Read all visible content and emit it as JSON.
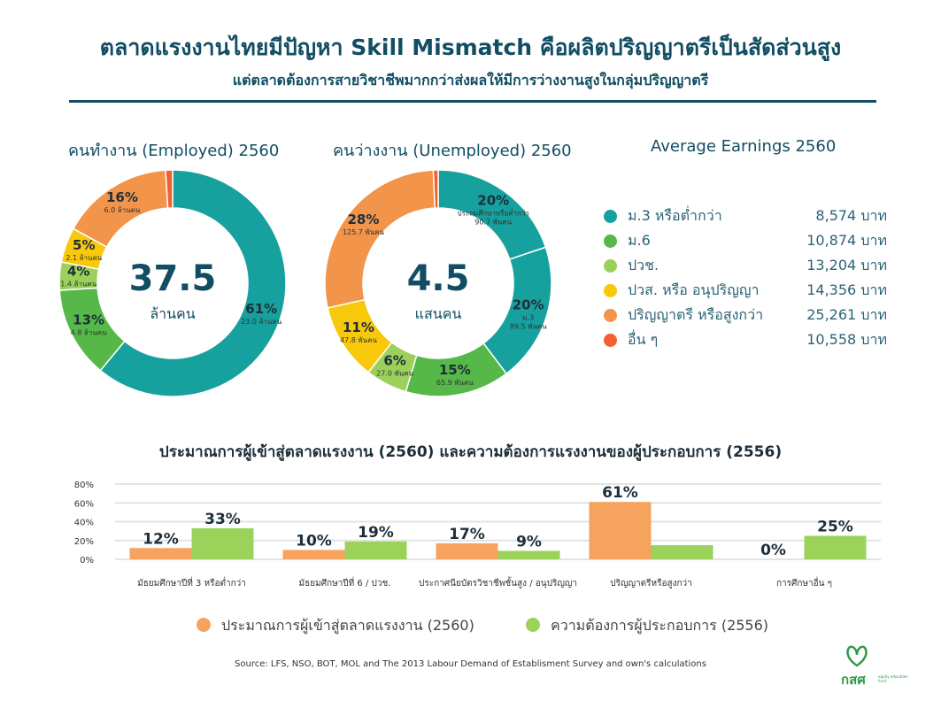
{
  "header": {
    "title": "ตลาดแรงงานไทยมีปัญหา Skill Mismatch คือผลิตปริญญาตรีเป็นสัดส่วนสูง",
    "subtitle": "แต่ตลาดต้องการสายวิชาชีพมากกว่าส่งผลให้มีการว่างงานสูงในกลุ่มปริญญาตรี"
  },
  "colors": {
    "teal": "#16a09e",
    "green": "#55b849",
    "lightgreen": "#9bd05a",
    "yellow": "#f7c90a",
    "orange": "#f2944a",
    "red": "#f2602f",
    "bar_orange": "#f5a35e",
    "bar_green": "#9bd35a"
  },
  "chart_data": [
    {
      "type": "donut",
      "title": "คนทำงาน (Employed) 2560",
      "center_value": "37.5",
      "center_unit": "ล้านคน",
      "slices": [
        {
          "pct": 61,
          "label": "61%",
          "sub": "23.0 ล้านคน",
          "color": "#16a09e"
        },
        {
          "pct": 13,
          "label": "13%",
          "sub": "4.8 ล้านคน",
          "color": "#55b849"
        },
        {
          "pct": 4,
          "label": "4%",
          "sub": "1.4 ล้านคน",
          "color": "#9bd05a"
        },
        {
          "pct": 5,
          "label": "5%",
          "sub": "2.1 ล้านคน",
          "color": "#f7c90a"
        },
        {
          "pct": 16,
          "label": "16%",
          "sub": "6.0 ล้านคน",
          "color": "#f2944a"
        },
        {
          "pct": 1,
          "label": "",
          "sub": "",
          "color": "#f2602f"
        }
      ]
    },
    {
      "type": "donut",
      "title": "คนว่างงาน (Unemployed) 2560",
      "center_value": "4.5",
      "center_unit": "แสนคน",
      "slices": [
        {
          "pct": 20,
          "label": "20%",
          "sub": "ประถมศึกษาหรือต่ำกว่า",
          "sub2": "90.7 พันคน",
          "color": "#16a09e"
        },
        {
          "pct": 20,
          "label": "20%",
          "sub": "ม.3",
          "sub2": "89.5 พันคน",
          "color": "#16a09e"
        },
        {
          "pct": 15,
          "label": "15%",
          "sub": "65.9 พันคน",
          "color": "#55b849"
        },
        {
          "pct": 6,
          "label": "6%",
          "sub": "27.0 พันคน",
          "color": "#9bd05a"
        },
        {
          "pct": 11,
          "label": "11%",
          "sub": "47.8 พันคน",
          "color": "#f7c90a"
        },
        {
          "pct": 28,
          "label": "28%",
          "sub": "125.7 พันคน",
          "color": "#f2944a"
        },
        {
          "pct": 0.7,
          "label": "",
          "sub": "",
          "color": "#f2602f"
        }
      ]
    },
    {
      "type": "table",
      "title": "Average Earnings 2560",
      "rows": [
        {
          "label": "ม.3 หรือต่ำกว่า",
          "value": "8,574 บาท",
          "color": "#16a09e"
        },
        {
          "label": "ม.6",
          "value": "10,874 บาท",
          "color": "#55b849"
        },
        {
          "label": "ปวช.",
          "value": "13,204 บาท",
          "color": "#9bd05a"
        },
        {
          "label": "ปวส. หรือ อนุปริญญา",
          "value": "14,356 บาท",
          "color": "#f7c90a"
        },
        {
          "label": "ปริญญาตรี หรือสูงกว่า",
          "value": "25,261 บาท",
          "color": "#f2944a"
        },
        {
          "label": "อื่น ๆ",
          "value": "10,558 บาท",
          "color": "#f2602f"
        }
      ]
    },
    {
      "type": "bar",
      "title": "ประมาณการผู้เข้าสู่ตลาดแรงงาน (2560) และความต้องการแรงงานของผู้ประกอบการ (2556)",
      "categories": [
        "มัธยมศึกษาปีที่ 3 หรือต่ำกว่า",
        "มัธยมศึกษาปีที่ 6 / ปวช.",
        "ประกาศนียบัตรวิชาชีพชั้นสูง / อนุปริญญา",
        "ปริญญาตรีหรือสูงกว่า",
        "การศึกษาอื่น ๆ"
      ],
      "yticks": [
        "0%",
        "20%",
        "40%",
        "60%",
        "80%"
      ],
      "ylim": [
        0,
        80
      ],
      "series": [
        {
          "name": "ประมาณการผู้เข้าสู่ตลาดแรงงาน (2560)",
          "values": [
            12,
            10,
            17,
            61,
            0
          ],
          "labels": [
            "12%",
            "10%",
            "17%",
            "61%",
            "0%"
          ],
          "color": "#f5a35e"
        },
        {
          "name": "ความต้องการผู้ประกอบการ (2556)",
          "values": [
            33,
            19,
            9,
            15,
            25
          ],
          "labels": [
            "33%",
            "19%",
            "9%",
            "",
            "25%"
          ],
          "color": "#9bd35a"
        }
      ]
    }
  ],
  "footer": {
    "source": "Source: LFS, NSO, BOT, MOL and The 2013 Labour Demand of Establisment Survey and own's calculations",
    "logo_text": "กสศ",
    "logo_small": "equity education fund"
  }
}
